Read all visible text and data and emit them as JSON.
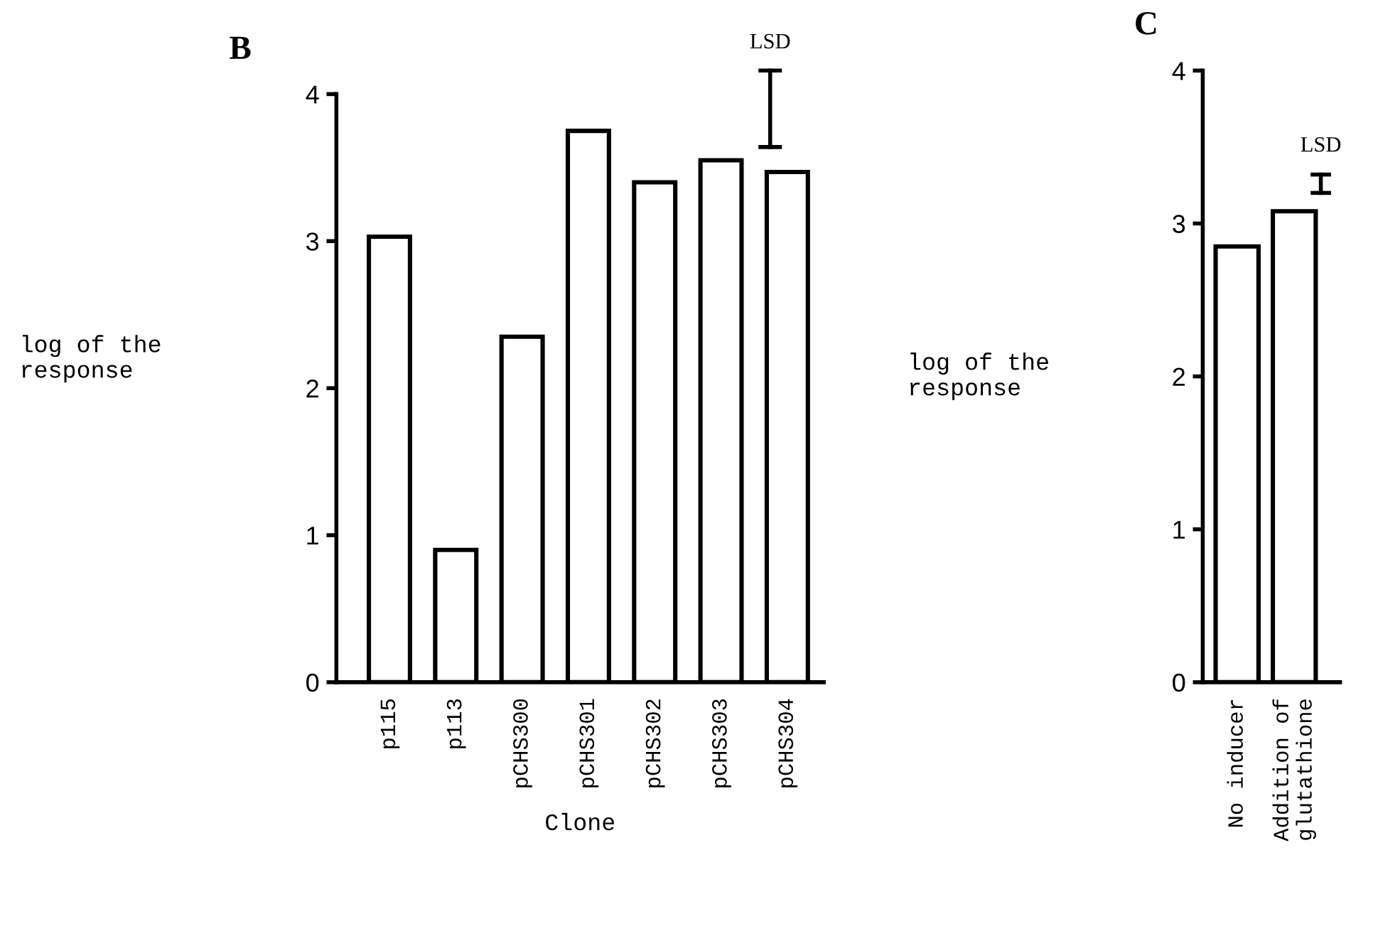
{
  "chart_data": [
    {
      "type": "bar",
      "title": "B",
      "ylabel": "log of the\nresponse",
      "xlabel": "Clone",
      "categories": [
        "p115",
        "p113",
        "pCHS300",
        "pCHS301",
        "pCHS302",
        "pCHS303",
        "pCHS304"
      ],
      "values": [
        3.03,
        0.9,
        2.35,
        3.75,
        3.4,
        3.55,
        3.47
      ],
      "colors": [
        "#ffffff",
        "#ffffff",
        "#ffffff",
        "#ffffff",
        "#ffffff",
        "#ffffff",
        "#ffffff"
      ],
      "ylim": [
        0,
        4
      ],
      "yticks": [
        0,
        1,
        2,
        3,
        4
      ],
      "grid": false,
      "legend": false,
      "annotations": [
        "LSD"
      ]
    },
    {
      "type": "bar",
      "title": "C",
      "ylabel": "log of the\nresponse",
      "categories": [
        "No inducer",
        "Addition of\nglutathione"
      ],
      "values": [
        2.85,
        3.08
      ],
      "colors": [
        "#ffffff",
        "#ffffff"
      ],
      "ylim": [
        0,
        4
      ],
      "yticks": [
        0,
        1,
        2,
        3,
        4
      ],
      "grid": false,
      "legend": false,
      "annotations": [
        "LSD"
      ]
    }
  ]
}
